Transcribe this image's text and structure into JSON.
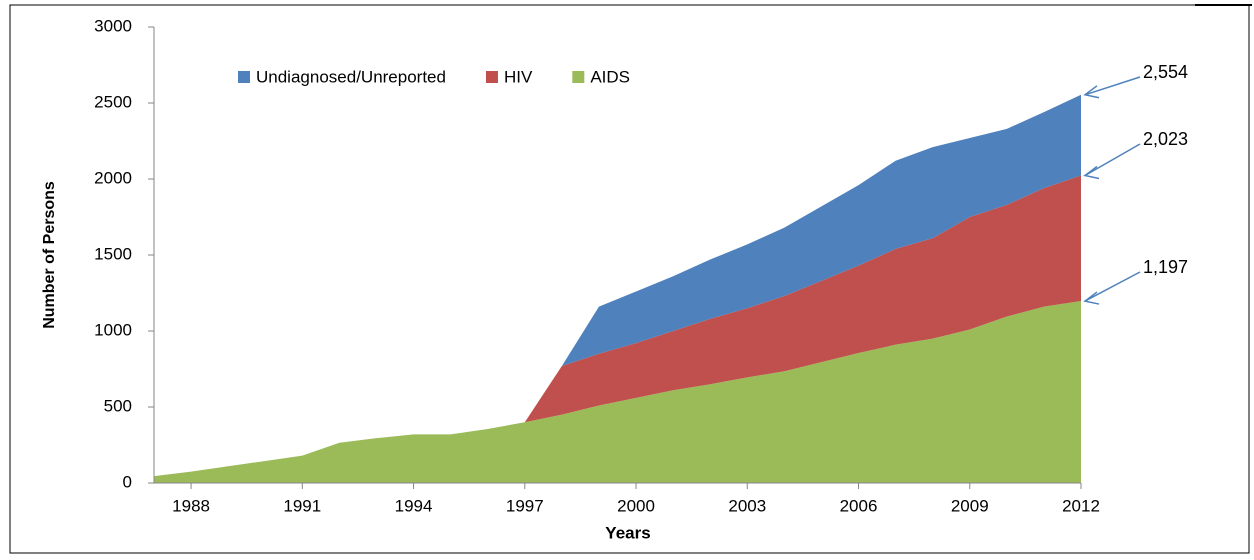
{
  "chart_data": {
    "type": "stacked-area",
    "x": [
      1987,
      1988,
      1989,
      1990,
      1991,
      1992,
      1993,
      1994,
      1995,
      1996,
      1997,
      1998,
      1999,
      2000,
      2001,
      2002,
      2003,
      2004,
      2005,
      2006,
      2007,
      2008,
      2009,
      2010,
      2011,
      2012
    ],
    "series": [
      {
        "name": "AIDS",
        "color": "#9bbb59",
        "values": [
          45,
          75,
          110,
          145,
          180,
          265,
          295,
          320,
          320,
          355,
          400,
          450,
          510,
          560,
          610,
          650,
          695,
          735,
          795,
          855,
          910,
          950,
          1010,
          1095,
          1160,
          1197
        ]
      },
      {
        "name": "HIV",
        "color": "#c0504d",
        "values": [
          null,
          null,
          null,
          null,
          null,
          null,
          null,
          null,
          null,
          null,
          0,
          320,
          340,
          360,
          390,
          430,
          455,
          495,
          535,
          575,
          630,
          660,
          740,
          735,
          780,
          826
        ]
      },
      {
        "name": "Undiagnosed/Unreported",
        "color": "#4f81bd",
        "values": [
          null,
          null,
          null,
          null,
          null,
          null,
          null,
          null,
          null,
          null,
          null,
          0,
          310,
          340,
          360,
          390,
          420,
          450,
          490,
          530,
          580,
          600,
          520,
          500,
          500,
          531
        ]
      }
    ],
    "xlim": [
      1987,
      2012
    ],
    "xticks": [
      1988,
      1991,
      1994,
      1997,
      2000,
      2003,
      2006,
      2009,
      2012
    ],
    "ylim": [
      0,
      3000
    ],
    "yticks": [
      0,
      500,
      1000,
      1500,
      2000,
      2500,
      3000
    ],
    "x_label": "Years",
    "y_label": "Number of Persons",
    "annotations": [
      "2,554",
      "2,023",
      "1,197"
    ],
    "legend": "top-left"
  }
}
